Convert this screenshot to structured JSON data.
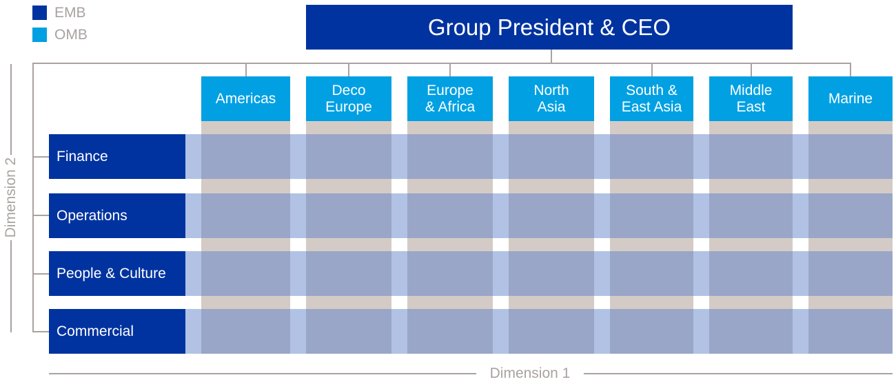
{
  "legend": [
    {
      "label": "EMB",
      "color": "#0033a0"
    },
    {
      "label": "OMB",
      "color": "#00a0e3"
    }
  ],
  "top": {
    "title": "Group President & CEO"
  },
  "regions": [
    {
      "label": "Americas"
    },
    {
      "label": "Deco\nEurope"
    },
    {
      "label": "Europe\n& Africa"
    },
    {
      "label": "North\nAsia"
    },
    {
      "label": "South &\nEast Asia"
    },
    {
      "label": "Middle\nEast"
    },
    {
      "label": "Marine"
    }
  ],
  "functions": [
    {
      "label": "Finance"
    },
    {
      "label": "Operations"
    },
    {
      "label": "People & Culture"
    },
    {
      "label": "Commercial"
    }
  ],
  "axes": {
    "dimension_1": "Dimension 1",
    "dimension_2": "Dimension 2"
  },
  "colors": {
    "emb": "#0033a0",
    "omb": "#00a0e3",
    "connector": "#a9a29f",
    "grid_cell": "#9aa6c8",
    "row_band": "#b1c2e4",
    "column_band": "#d4cbc6"
  }
}
